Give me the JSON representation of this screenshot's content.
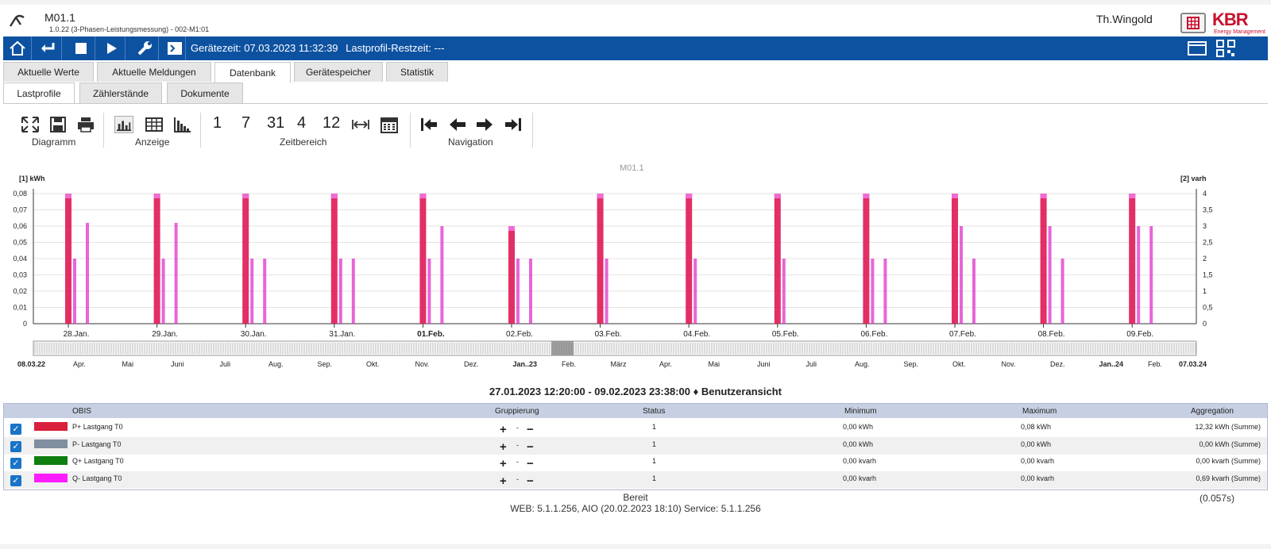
{
  "header": {
    "device_name": "M01.1",
    "device_sub": "1.0.22    (3-Phasen-Leistungsmessung) - 002-M1:01",
    "user": "Th.Wingold",
    "brand": "KBR",
    "brand_sub": "Energy Management"
  },
  "toolbar": {
    "geraetezeit_label": "Gerätezeit:",
    "geraetezeit_value": "07.03.2023 11:32:39",
    "restzeit_label": "Lastprofil-Restzeit:",
    "restzeit_value": "---"
  },
  "tabs": [
    "Aktuelle Werte",
    "Aktuelle Meldungen",
    "Datenbank",
    "Gerätespeicher",
    "Statistik"
  ],
  "active_tab": "Datenbank",
  "subtabs": [
    "Lastprofile",
    "Zählerstände",
    "Dokumente"
  ],
  "active_subtab": "Lastprofile",
  "ribbon": {
    "group_diagramm": "Diagramm",
    "group_anzeige": "Anzeige",
    "group_zeitbereich": "Zeitbereich",
    "group_navigation": "Navigation",
    "zeit_buttons": [
      "1",
      "7",
      "31",
      "4",
      "12"
    ]
  },
  "chart_data": {
    "type": "bar",
    "title": "M01.1",
    "ylabel_left": "[1] kWh",
    "ylabel_right": "[2] varh",
    "ylim_left": [
      0,
      0.08
    ],
    "ylim_right": [
      0,
      4
    ],
    "yticks_left": [
      "0",
      "0,01",
      "0,02",
      "0,03",
      "0,04",
      "0,05",
      "0,06",
      "0,07",
      "0,08"
    ],
    "yticks_right": [
      "0",
      "0,5",
      "1",
      "1,5",
      "2",
      "2,5",
      "3",
      "3,5",
      "4"
    ],
    "x_labels": [
      "28.Jan.",
      "29.Jan.",
      "30.Jan.",
      "31.Jan.",
      "01.Feb.",
      "02.Feb.",
      "03.Feb.",
      "04.Feb.",
      "05.Feb.",
      "06.Feb.",
      "07.Feb.",
      "08.Feb.",
      "09.Feb."
    ],
    "series": [
      {
        "name": "P+ Lastgang T0",
        "color": "#e0245e"
      },
      {
        "name": "Q- Lastgang T0",
        "color": "#ff00ff"
      }
    ],
    "daily_peaks": [
      {
        "day": "28.Jan.",
        "values": [
          0.08,
          0.04,
          0.062
        ]
      },
      {
        "day": "29.Jan.",
        "values": [
          0.08,
          0.04,
          0.062
        ]
      },
      {
        "day": "30.Jan.",
        "values": [
          0.08,
          0.04,
          0.04
        ]
      },
      {
        "day": "31.Jan.",
        "values": [
          0.08,
          0.04,
          0.04
        ]
      },
      {
        "day": "01.Feb.",
        "values": [
          0.08,
          0.04,
          0.06
        ]
      },
      {
        "day": "02.Feb.",
        "values": [
          0.06,
          0.04,
          0.04
        ]
      },
      {
        "day": "03.Feb.",
        "values": [
          0.08,
          0.04
        ]
      },
      {
        "day": "04.Feb.",
        "values": [
          0.08,
          0.04
        ]
      },
      {
        "day": "05.Feb.",
        "values": [
          0.08,
          0.04
        ]
      },
      {
        "day": "06.Feb.",
        "values": [
          0.08,
          0.04,
          0.04
        ]
      },
      {
        "day": "07.Feb.",
        "values": [
          0.08,
          0.06,
          0.04
        ]
      },
      {
        "day": "08.Feb.",
        "values": [
          0.08,
          0.06,
          0.04
        ]
      },
      {
        "day": "09.Feb.",
        "values": [
          0.08,
          0.06,
          0.06
        ]
      }
    ],
    "navigator_labels": [
      "08.03.22",
      "Apr.",
      "Mai",
      "Juni",
      "Juli",
      "Aug.",
      "Sep.",
      "Okt.",
      "Nov.",
      "Dez.",
      "Jan..23",
      "Feb.",
      "März",
      "Apr.",
      "Mai",
      "Juni",
      "Juli",
      "Aug.",
      "Sep.",
      "Okt.",
      "Nov.",
      "Dez.",
      "Jan..24",
      "Feb.",
      "07.03.24"
    ]
  },
  "range_text": "27.01.2023 12:20:00 - 09.02.2023 23:38:00 ♦ Benutzeransicht",
  "table": {
    "headers": {
      "obis": "OBIS",
      "gruppierung": "Gruppierung",
      "status": "Status",
      "minimum": "Minimum",
      "maximum": "Maximum",
      "aggregation": "Aggregation"
    },
    "rows": [
      {
        "name": "P+ Lastgang T0",
        "color": "#d9203d",
        "status": "1",
        "minimum": "0,00 kWh",
        "maximum": "0,08 kWh",
        "aggregation": "12,32 kWh (Summe)"
      },
      {
        "name": "P- Lastgang T0",
        "color": "#7f8fa0",
        "status": "1",
        "minimum": "0,00 kWh",
        "maximum": "0,00 kWh",
        "aggregation": "0,00 kWh (Summe)"
      },
      {
        "name": "Q+ Lastgang T0",
        "color": "#0f7f10",
        "status": "1",
        "minimum": "0,00 kvarh",
        "maximum": "0,00 kvarh",
        "aggregation": "0,00 kvarh (Summe)"
      },
      {
        "name": "Q- Lastgang T0",
        "color": "#ff1cff",
        "status": "1",
        "minimum": "0,00 kvarh",
        "maximum": "0,00 kvarh",
        "aggregation": "0,69 kvarh (Summe)"
      }
    ]
  },
  "footer": {
    "status": "Bereit",
    "version": "WEB: 5.1.1.256, AIO (20.02.2023 18:10)   Service: 5.1.1.256",
    "time": "(0.057s)"
  }
}
